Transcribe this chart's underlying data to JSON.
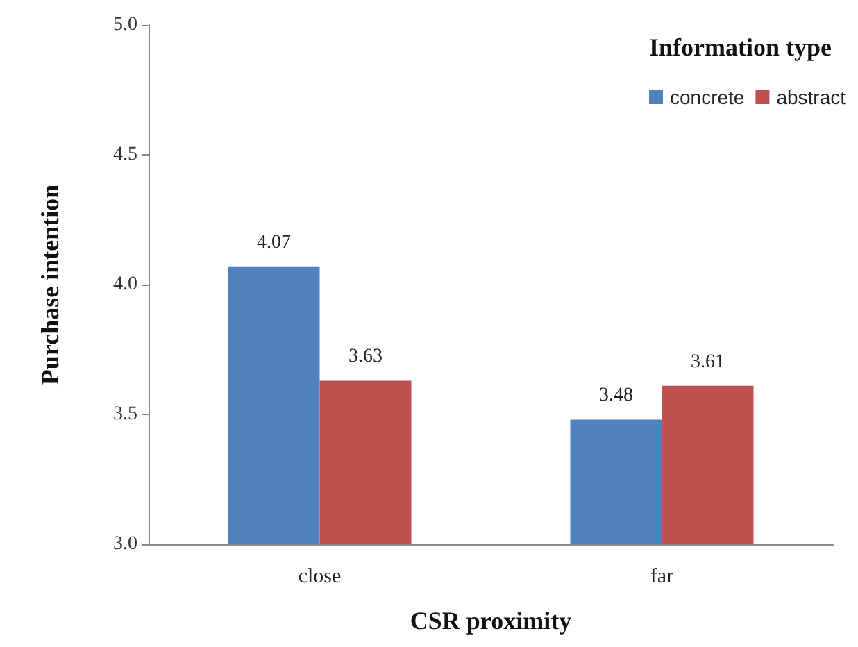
{
  "chart_data": {
    "type": "bar",
    "xlabel": "CSR proximity",
    "ylabel": "Purchase intention",
    "legend_title": "Information type",
    "categories": [
      "close",
      "far"
    ],
    "series": [
      {
        "name": "concrete",
        "color": "#4f81bd",
        "values": [
          4.07,
          3.48
        ]
      },
      {
        "name": "abstract",
        "color": "#c0504d",
        "values": [
          3.63,
          3.61
        ]
      }
    ],
    "ylim": [
      3,
      5
    ],
    "yticks": [
      {
        "value": 3,
        "label": "3.0"
      },
      {
        "value": 3.5,
        "label": "3.5"
      },
      {
        "value": 4,
        "label": "4.0"
      },
      {
        "value": 4.5,
        "label": "4.5"
      },
      {
        "value": 5,
        "label": "5.0"
      }
    ],
    "grid": false,
    "legend": "top right",
    "data_labels": true
  }
}
